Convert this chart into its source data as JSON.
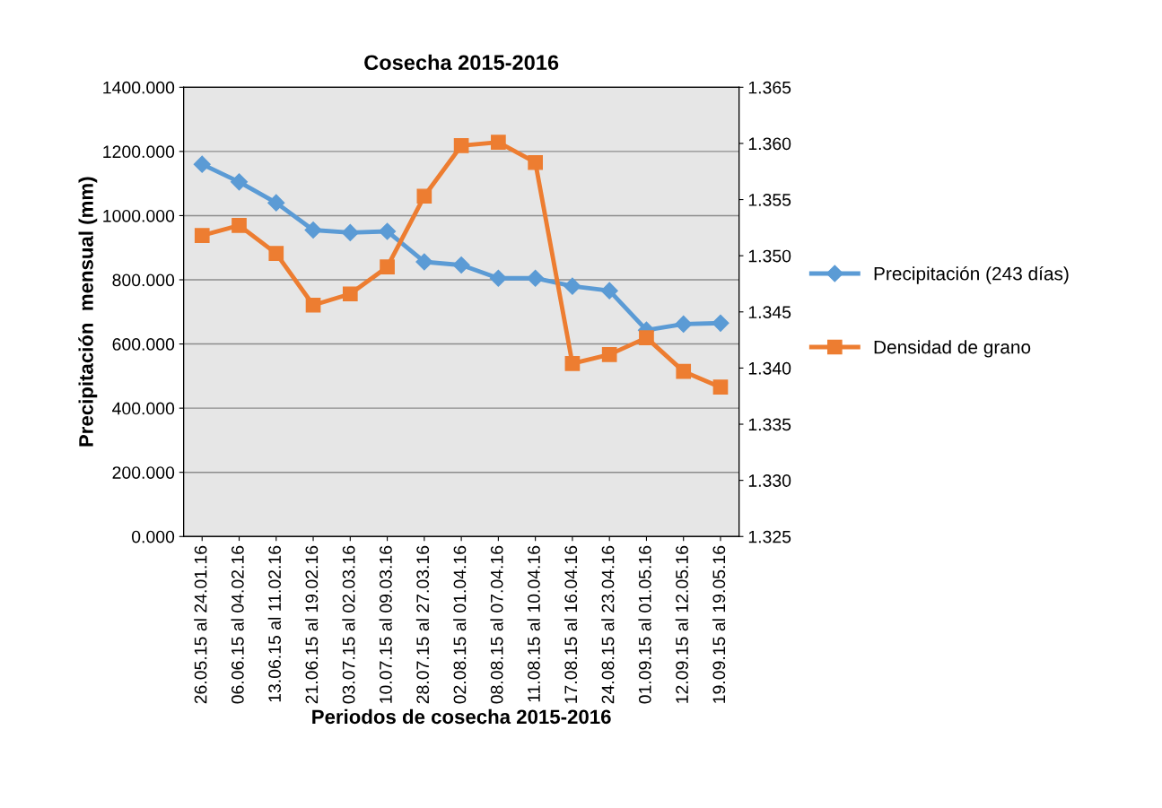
{
  "chart_data": {
    "type": "line",
    "title": "Cosecha 2015-2016",
    "xlabel": "Periodos de cosecha 2015-2016",
    "ylabel": "Precipitación  mensual (mm)",
    "categories": [
      "26.05.15 al 24.01.16",
      "06.06.15 al 04.02.16",
      "13.06.15 al 11.02.16",
      "21.06.15 al 19.02.16",
      "03.07.15 al 02.03.16",
      "10.07.15 al 09.03.16",
      "28.07.15 al 27.03.16",
      "02.08.15 al 01.04.16",
      "08.08.15 al 07.04.16",
      "11.08.15 al 10.04.16",
      "17.08.15 al 16.04.16",
      "24.08.15 al 23.04.16",
      "01.09.15 al 01.05.16",
      "12.09.15 al 12.05.16",
      "19.09.15 al 19.05.16"
    ],
    "series": [
      {
        "name": "Precipitación (243 días)",
        "color": "#5b9bd5",
        "marker": "diamond",
        "values": [
          1160,
          1105,
          1040,
          955,
          947,
          951,
          856,
          846,
          805,
          805,
          780,
          766,
          643,
          662,
          665
        ]
      },
      {
        "name": "Densidad de grano",
        "color": "#ed7d31",
        "marker": "square",
        "axis": "y2",
        "values": [
          1.3518,
          1.3527,
          1.3502,
          1.3456,
          1.3466,
          1.349,
          1.3553,
          1.3598,
          1.3601,
          1.3583,
          1.3404,
          1.3412,
          1.3427,
          1.3397,
          1.3383
        ]
      }
    ],
    "ylim": [
      0,
      1400
    ],
    "yticks": [
      {
        "value": 0,
        "label": "0.000"
      },
      {
        "value": 200,
        "label": "200.000"
      },
      {
        "value": 400,
        "label": "400.000"
      },
      {
        "value": 600,
        "label": "600.000"
      },
      {
        "value": 800,
        "label": "800.000"
      },
      {
        "value": 1000,
        "label": "1000.000"
      },
      {
        "value": 1200,
        "label": "1200.000"
      },
      {
        "value": 1400,
        "label": "1400.000"
      }
    ],
    "y2lim": [
      1.325,
      1.365
    ],
    "y2ticks": [
      1.325,
      {
        "value": 1.33,
        "label": "1.330"
      },
      1.335,
      {
        "value": 1.34,
        "label": "1.340"
      },
      1.345,
      {
        "value": 1.35,
        "label": "1.350"
      },
      1.355,
      {
        "value": 1.36,
        "label": "1.360"
      },
      1.365
    ],
    "grid": "y",
    "legend": "right",
    "line_style": "solid"
  }
}
